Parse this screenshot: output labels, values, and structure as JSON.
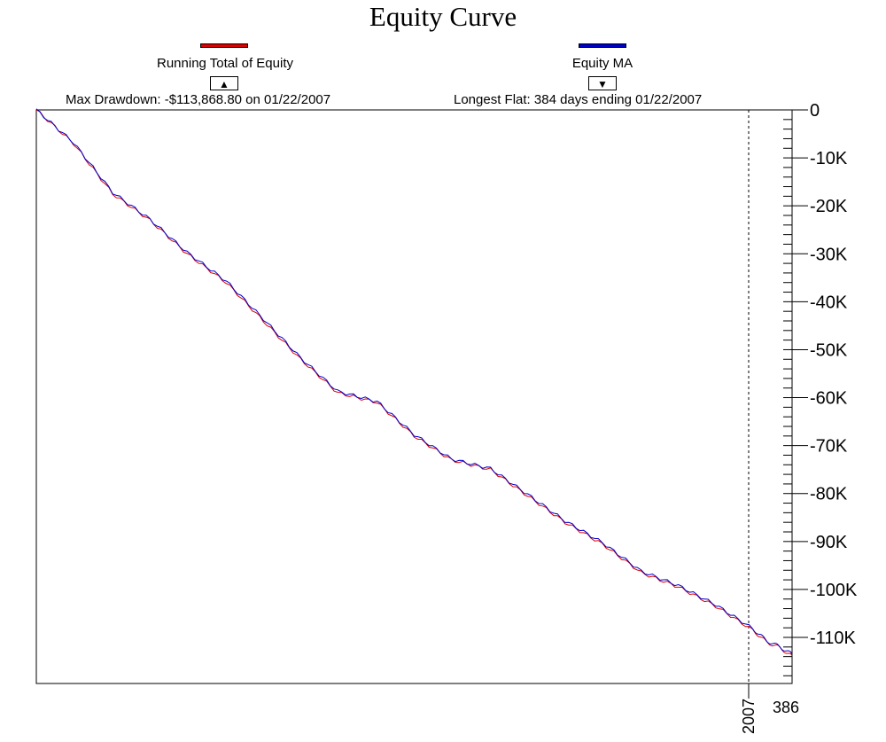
{
  "chart_data": {
    "type": "line",
    "title": "Equity Curve",
    "series": [
      {
        "name": "Running Total of Equity",
        "color": "#dd0000",
        "x": [
          0,
          19,
          39,
          58,
          77,
          97,
          116,
          135,
          154,
          174,
          193,
          212,
          232,
          251,
          270,
          289,
          309,
          328,
          347,
          366,
          373,
          379,
          386
        ],
        "values": [
          0,
          -7000,
          -17500,
          -23000,
          -30000,
          -36000,
          -44000,
          -52000,
          -59000,
          -61000,
          -68000,
          -73000,
          -75000,
          -80500,
          -86000,
          -90500,
          -96500,
          -99500,
          -103500,
          -108500,
          -111000,
          -112000,
          -113868.8
        ]
      },
      {
        "name": "Equity MA",
        "color": "#0000cc",
        "x": [
          0,
          19,
          39,
          58,
          77,
          97,
          116,
          135,
          154,
          174,
          193,
          212,
          232,
          251,
          270,
          289,
          309,
          328,
          347,
          366,
          373,
          379,
          386
        ],
        "values": [
          0,
          -6800,
          -17200,
          -22800,
          -29700,
          -35700,
          -43600,
          -51700,
          -58700,
          -60800,
          -67700,
          -72800,
          -74800,
          -80200,
          -85700,
          -90200,
          -96200,
          -99200,
          -103200,
          -108200,
          -110700,
          -111800,
          -113500
        ]
      }
    ],
    "xlim": [
      0,
      386
    ],
    "ylim": [
      -119000,
      0
    ],
    "yticks": [
      0,
      -10000,
      -20000,
      -30000,
      -40000,
      -50000,
      -60000,
      -70000,
      -80000,
      -90000,
      -100000,
      -110000
    ],
    "ytick_labels": [
      "0",
      "-10K",
      "-20K",
      "-30K",
      "-40K",
      "-50K",
      "-60K",
      "-70K",
      "-80K",
      "-90K",
      "-100K",
      "-110K"
    ],
    "x_marker": {
      "label": "2007",
      "x": 363
    },
    "x_end_label": "386",
    "grid": false,
    "legend": "top"
  },
  "legend": {
    "equity_label": "Running Total of Equity",
    "ma_label": "Equity MA",
    "up_arrow": "▲",
    "down_arrow": "▼"
  },
  "stats": {
    "max_drawdown": "Max Drawdown: -$113,868.80 on 01/22/2007",
    "longest_flat": "Longest Flat: 384 days ending 01/22/2007"
  }
}
